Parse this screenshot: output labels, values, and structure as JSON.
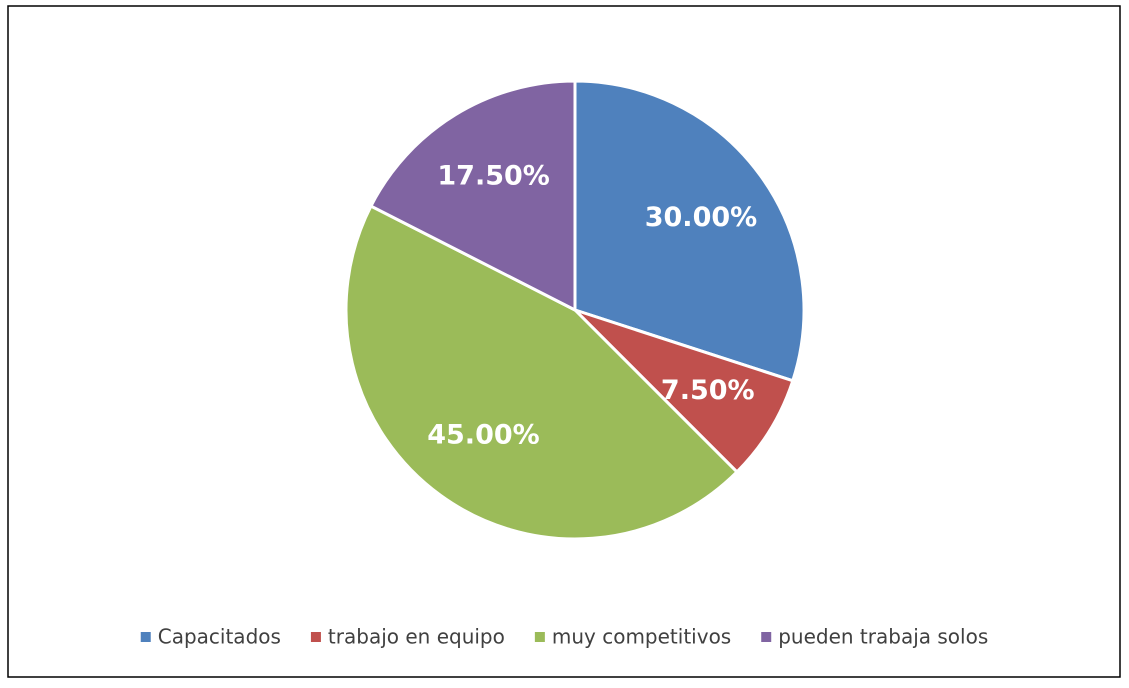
{
  "chart_data": {
    "type": "pie",
    "categories": [
      "Capacitados",
      "trabajo en equipo",
      "muy competitivos",
      "pueden trabaja solos"
    ],
    "values": [
      30,
      7.5,
      45,
      17.5
    ],
    "value_labels": [
      "30.00%",
      "7.50%",
      "45.00%",
      "17.50%"
    ],
    "colors": [
      "#4f81bd",
      "#c0504d",
      "#9bbb59",
      "#8064a2"
    ],
    "legend": "bottom"
  }
}
